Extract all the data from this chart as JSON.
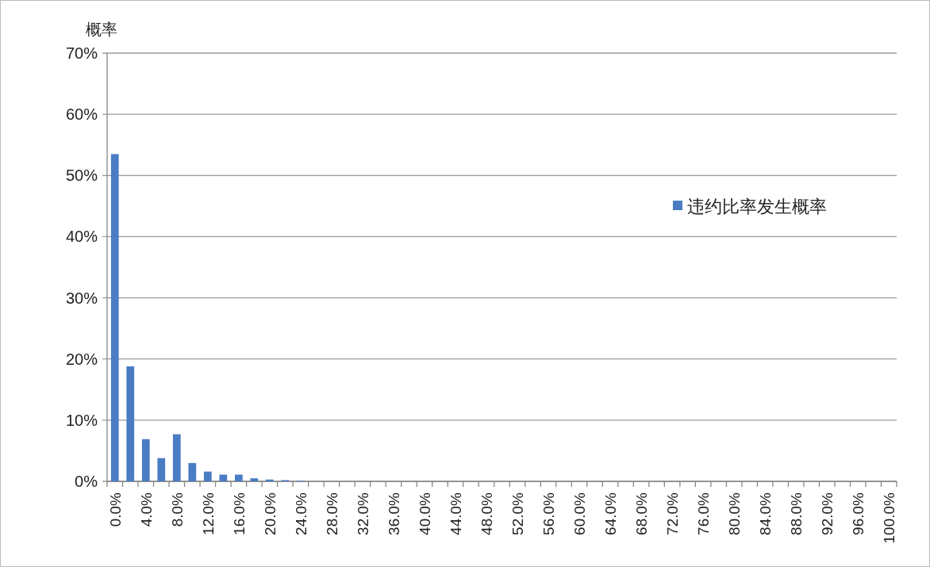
{
  "chart_data": {
    "type": "bar",
    "ylabel": "概率",
    "categories": [
      "0.0%",
      null,
      "4.0%",
      null,
      "8.0%",
      null,
      "12.0%",
      null,
      "16.0%",
      null,
      "20.0%",
      null,
      "24.0%",
      null,
      "28.0%",
      null,
      "32.0%",
      null,
      "36.0%",
      null,
      "40.0%",
      null,
      "44.0%",
      null,
      "48.0%",
      null,
      "52.0%",
      null,
      "56.0%",
      null,
      "60.0%",
      null,
      "64.0%",
      null,
      "68.0%",
      null,
      "72.0%",
      null,
      "76.0%",
      null,
      "80.0%",
      null,
      "84.0%",
      null,
      "88.0%",
      null,
      "92.0%",
      null,
      "96.0%",
      null,
      "100.0%"
    ],
    "series": [
      {
        "name": "违约比率发生概率",
        "color": "#4a7cc4",
        "values": [
          53.5,
          18.8,
          6.9,
          3.8,
          7.7,
          3.0,
          1.6,
          1.1,
          1.1,
          0.5,
          0.3,
          0.2,
          0.1,
          0,
          0,
          0,
          0,
          0,
          0,
          0,
          0,
          0,
          0,
          0,
          0,
          0,
          0,
          0,
          0,
          0,
          0,
          0,
          0,
          0,
          0,
          0,
          0,
          0,
          0,
          0,
          0,
          0,
          0,
          0,
          0,
          0,
          0,
          0,
          0,
          0,
          0
        ]
      }
    ],
    "ylim": [
      0,
      70
    ],
    "yticks": [
      {
        "value": 0,
        "label": "0%"
      },
      {
        "value": 10,
        "label": "10%"
      },
      {
        "value": 20,
        "label": "20%"
      },
      {
        "value": 30,
        "label": "30%"
      },
      {
        "value": 40,
        "label": "40%"
      },
      {
        "value": 50,
        "label": "50%"
      },
      {
        "value": 60,
        "label": "60%"
      },
      {
        "value": 70,
        "label": "70%"
      }
    ],
    "grid": "y",
    "legend": "right"
  }
}
